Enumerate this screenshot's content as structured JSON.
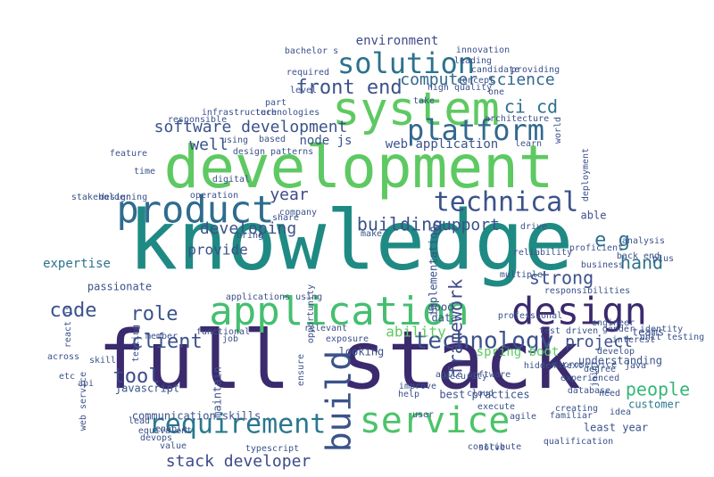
{
  "words": [
    {
      "text": "knowledge",
      "color": "#1f8a84"
    },
    {
      "text": "development",
      "color": "#5ec962"
    },
    {
      "text": "full stack",
      "color": "#3b2a6e"
    },
    {
      "text": "application",
      "color": "#44bf70"
    },
    {
      "text": "system",
      "color": "#5ec962"
    },
    {
      "text": "design",
      "color": "#3b2a6e"
    },
    {
      "text": "service",
      "color": "#4cc36a"
    },
    {
      "text": "build",
      "color": "#3b528b"
    },
    {
      "text": "product",
      "color": "#2e6c8e"
    },
    {
      "text": "solution",
      "color": "#2c728e"
    },
    {
      "text": "platform",
      "color": "#31688e"
    },
    {
      "text": "requirement",
      "color": "#2a788e"
    },
    {
      "text": "technical",
      "color": "#3b528b"
    },
    {
      "text": "technology",
      "color": "#3b528b"
    },
    {
      "text": "software development",
      "color": "#3b528b"
    },
    {
      "text": "framework",
      "color": "#3e4a89"
    },
    {
      "text": "front end",
      "color": "#3b528b"
    },
    {
      "text": "stack developer",
      "color": "#3e4989"
    },
    {
      "text": "developing",
      "color": "#3b528b"
    },
    {
      "text": "building",
      "color": "#3b528b"
    },
    {
      "text": "computer science",
      "color": "#31688e"
    },
    {
      "text": "ci cd",
      "color": "#2c728e"
    },
    {
      "text": "client",
      "color": "#3b528b"
    },
    {
      "text": "role",
      "color": "#3b528b"
    },
    {
      "text": "tool",
      "color": "#3e4a89"
    },
    {
      "text": "code",
      "color": "#3b528b"
    },
    {
      "text": "expertise",
      "color": "#2c728e"
    },
    {
      "text": "support",
      "color": "#3b528b"
    },
    {
      "text": "strong",
      "color": "#3b528b"
    },
    {
      "text": "hand",
      "color": "#2c728e"
    },
    {
      "text": "project",
      "color": "#3b528b"
    },
    {
      "text": "people",
      "color": "#35b779"
    },
    {
      "text": "customer",
      "color": "#2a788e"
    },
    {
      "text": "spring boot",
      "color": "#5ec962"
    },
    {
      "text": "ability",
      "color": "#5ec962"
    },
    {
      "text": "e g",
      "color": "#2c728e"
    },
    {
      "text": "year",
      "color": "#3e4a89"
    },
    {
      "text": "well",
      "color": "#3b528b"
    },
    {
      "text": "provide",
      "color": "#3b528b"
    },
    {
      "text": "environment",
      "color": "#3e4a89"
    },
    {
      "text": "web application",
      "color": "#3b528b"
    },
    {
      "text": "implementation",
      "color": "#3b528b"
    },
    {
      "text": "node js",
      "color": "#3b528b"
    },
    {
      "text": "architecture",
      "color": "#3b528b"
    },
    {
      "text": "able",
      "color": "#3b528b"
    },
    {
      "text": "understanding",
      "color": "#3b528b"
    },
    {
      "text": "teams",
      "color": "#3b528b"
    },
    {
      "text": "least year",
      "color": "#3b528b"
    },
    {
      "text": "communication skills",
      "color": "#3b528b"
    },
    {
      "text": "passionate",
      "color": "#3b528b"
    },
    {
      "text": "javascript",
      "color": "#3b528b"
    },
    {
      "text": "maintain",
      "color": "#3b528b"
    },
    {
      "text": "looking",
      "color": "#3b528b"
    },
    {
      "text": "good",
      "color": "#3b528b"
    },
    {
      "text": "data",
      "color": "#3b528b"
    },
    {
      "text": "best practices",
      "color": "#3b528b"
    },
    {
      "text": "cloud",
      "color": "#3b528b"
    },
    {
      "text": "design patterns",
      "color": "#3b528b"
    },
    {
      "text": "technologies",
      "color": "#3b528b"
    },
    {
      "text": "using",
      "color": "#3b528b"
    },
    {
      "text": "based",
      "color": "#3b528b"
    },
    {
      "text": "part",
      "color": "#3b528b"
    },
    {
      "text": "one",
      "color": "#3b528b"
    },
    {
      "text": "back end",
      "color": "#3b528b"
    },
    {
      "text": "business",
      "color": "#3b528b"
    },
    {
      "text": "member",
      "color": "#3b528b"
    },
    {
      "text": "across",
      "color": "#3b528b"
    },
    {
      "text": "react js",
      "color": "#3b528b"
    },
    {
      "text": "high quality",
      "color": "#3b528b"
    },
    {
      "text": "engineer",
      "color": "#3b528b"
    },
    {
      "text": "develop",
      "color": "#3b528b"
    },
    {
      "text": "plus",
      "color": "#3b528b"
    },
    {
      "text": "responsibilities",
      "color": "#3b528b"
    },
    {
      "text": "job",
      "color": "#3b528b"
    },
    {
      "text": "help",
      "color": "#3b528b"
    },
    {
      "text": "agile",
      "color": "#3b528b"
    },
    {
      "text": "applications using",
      "color": "#3b528b"
    },
    {
      "text": "infrastructure",
      "color": "#3b528b"
    },
    {
      "text": "make",
      "color": "#3b528b"
    },
    {
      "text": "microservice",
      "color": "#3b528b"
    },
    {
      "text": "typescript",
      "color": "#3b528b"
    },
    {
      "text": "devops",
      "color": "#3b528b"
    },
    {
      "text": "company",
      "color": "#3b528b"
    },
    {
      "text": "candidate",
      "color": "#3b528b"
    },
    {
      "text": "deployment",
      "color": "#3b528b"
    },
    {
      "text": "world",
      "color": "#3b528b"
    },
    {
      "text": "experienced",
      "color": "#3b528b"
    },
    {
      "text": "equivalent",
      "color": "#3b528b"
    },
    {
      "text": "ensure",
      "color": "#3b528b"
    },
    {
      "text": "bachelor s",
      "color": "#3b528b"
    },
    {
      "text": "learn",
      "color": "#3b528b"
    },
    {
      "text": "test driven",
      "color": "#3b528b"
    },
    {
      "text": "api",
      "color": "#3b528b"
    },
    {
      "text": "etc",
      "color": "#3b528b"
    },
    {
      "text": "qualification",
      "color": "#3b528b"
    },
    {
      "text": "database",
      "color": "#3b528b"
    },
    {
      "text": "interest",
      "color": "#3b528b"
    },
    {
      "text": "proficient",
      "color": "#3b528b"
    },
    {
      "text": "creating",
      "color": "#3b528b"
    },
    {
      "text": "improve",
      "color": "#3b528b"
    },
    {
      "text": "agile software",
      "color": "#3b528b"
    },
    {
      "text": "contribute",
      "color": "#3b528b"
    },
    {
      "text": "user",
      "color": "#3b528b"
    },
    {
      "text": "familiar",
      "color": "#3b528b"
    },
    {
      "text": "hidden text",
      "color": "#3b528b"
    },
    {
      "text": "multiple",
      "color": "#3b528b"
    },
    {
      "text": "professional",
      "color": "#3b528b"
    },
    {
      "text": "security",
      "color": "#3b528b"
    },
    {
      "text": "testing",
      "color": "#3b528b"
    },
    {
      "text": "enable",
      "color": "#3b528b"
    },
    {
      "text": "responsible",
      "color": "#3b528b"
    },
    {
      "text": "innovation",
      "color": "#3b528b"
    },
    {
      "text": "drive",
      "color": "#3b528b"
    },
    {
      "text": "analysis",
      "color": "#3b528b"
    },
    {
      "text": "gender identity",
      "color": "#3b528b"
    },
    {
      "text": "unit testing",
      "color": "#3b528b"
    },
    {
      "text": "java",
      "color": "#3b528b"
    },
    {
      "text": "need",
      "color": "#3b528b"
    },
    {
      "text": "join",
      "color": "#3b528b"
    },
    {
      "text": "value",
      "color": "#3b528b"
    },
    {
      "text": "web service",
      "color": "#3b528b"
    },
    {
      "text": "skill",
      "color": "#3b528b"
    },
    {
      "text": "reliability",
      "color": "#3b528b"
    },
    {
      "text": "execute",
      "color": "#3b528b"
    },
    {
      "text": "lead",
      "color": "#3b528b"
    },
    {
      "text": "designing",
      "color": "#3b528b"
    },
    {
      "text": "time",
      "color": "#3b528b"
    },
    {
      "text": "operation",
      "color": "#3b528b"
    },
    {
      "text": "level",
      "color": "#3b528b"
    },
    {
      "text": "required",
      "color": "#3b528b"
    },
    {
      "text": "take",
      "color": "#3b528b"
    },
    {
      "text": "concept",
      "color": "#3b528b"
    },
    {
      "text": "degree",
      "color": "#3b528b"
    },
    {
      "text": "idea",
      "color": "#3b528b"
    },
    {
      "text": "functional",
      "color": "#3b528b"
    },
    {
      "text": "digital",
      "color": "#3b528b"
    },
    {
      "text": "share",
      "color": "#3b528b"
    },
    {
      "text": "stakeholder",
      "color": "#3b528b"
    },
    {
      "text": "exposure",
      "color": "#3b528b"
    },
    {
      "text": "opportunity",
      "color": "#3b528b"
    },
    {
      "text": "relevant",
      "color": "#3b528b"
    },
    {
      "text": "solve",
      "color": "#3b528b"
    },
    {
      "text": "bring",
      "color": "#3b528b"
    },
    {
      "text": "leading",
      "color": "#3b528b"
    },
    {
      "text": "providing",
      "color": "#3b528b"
    },
    {
      "text": "feature",
      "color": "#3b528b"
    }
  ]
}
